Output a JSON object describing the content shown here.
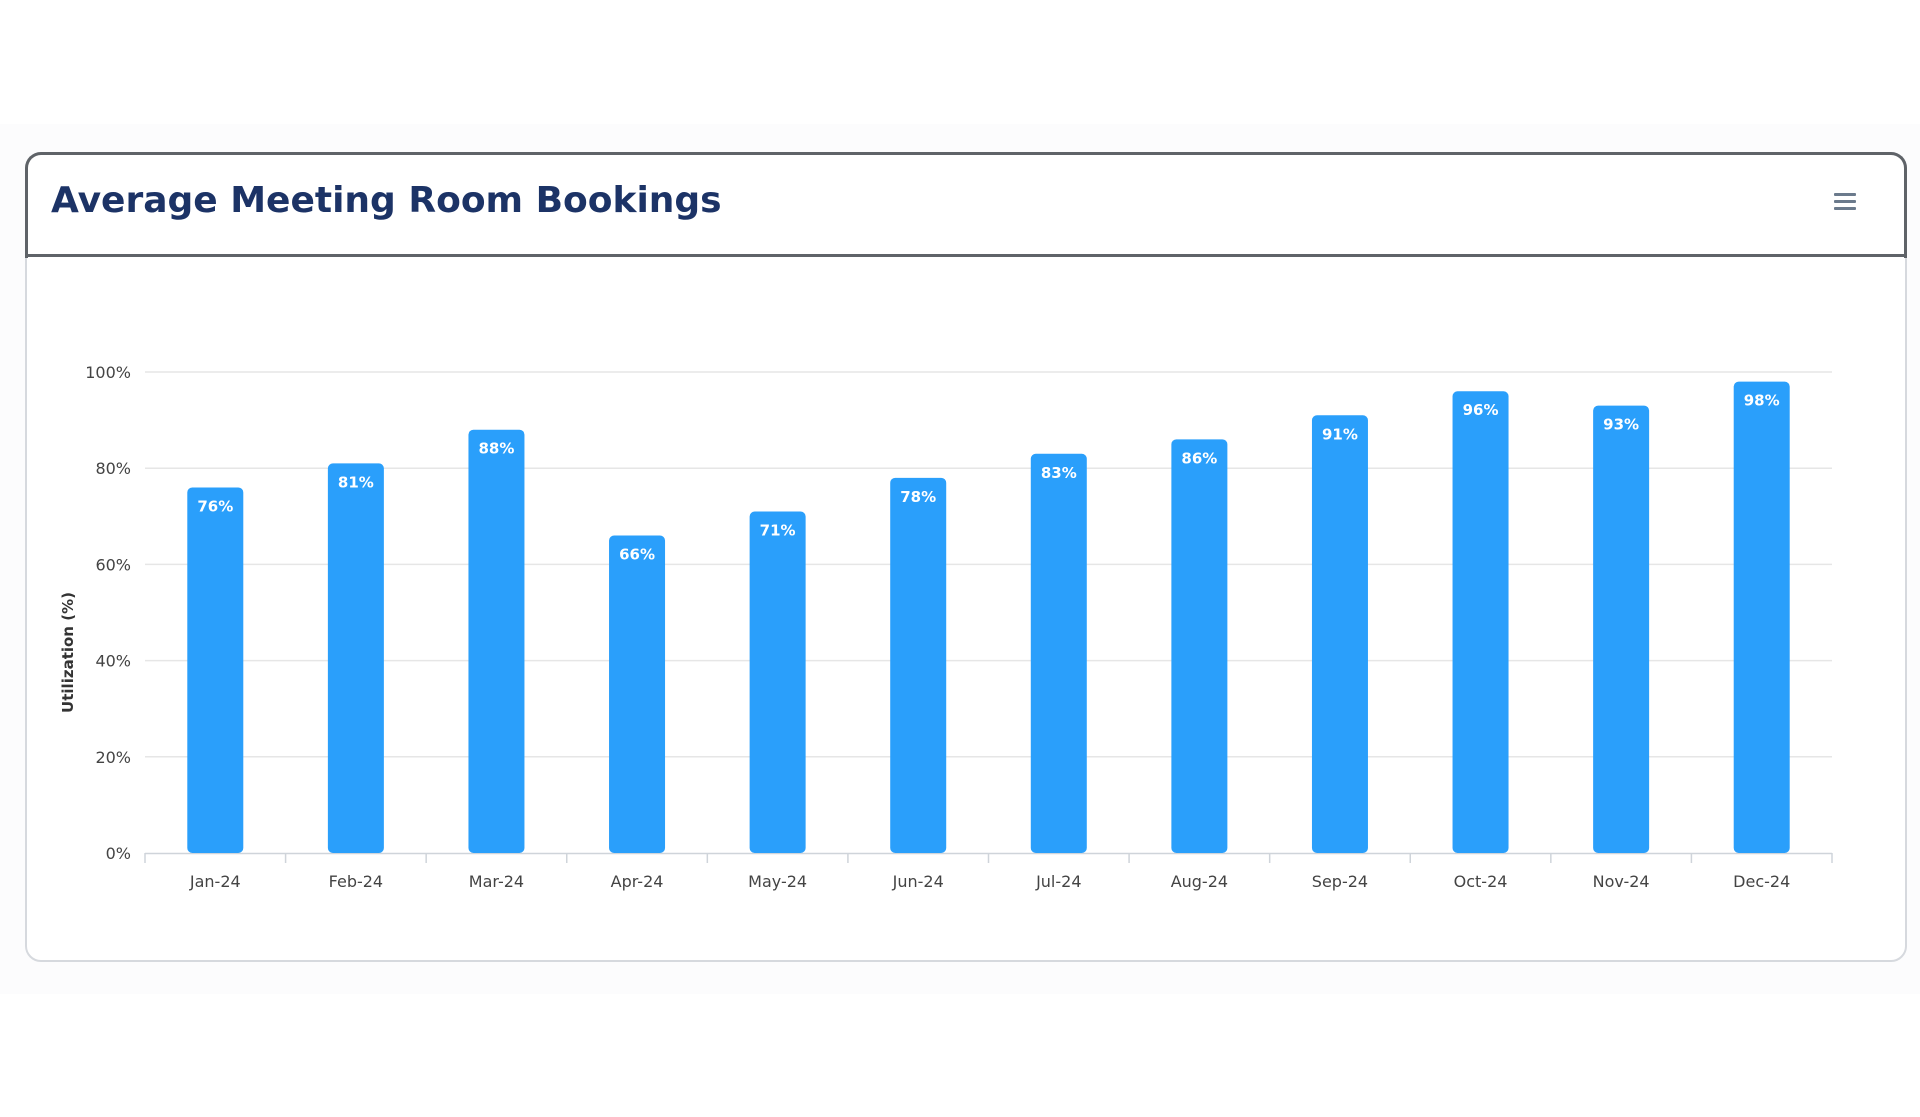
{
  "card": {
    "title": "Average Meeting Room Bookings"
  },
  "menu": {
    "icon": "hamburger-menu-icon"
  },
  "chart_data": {
    "type": "bar",
    "title": "Average Meeting Room Bookings",
    "categories": [
      "Jan-24",
      "Feb-24",
      "Mar-24",
      "Apr-24",
      "May-24",
      "Jun-24",
      "Jul-24",
      "Aug-24",
      "Sep-24",
      "Oct-24",
      "Nov-24",
      "Dec-24"
    ],
    "values": [
      76,
      81,
      88,
      66,
      71,
      78,
      83,
      86,
      91,
      96,
      93,
      98
    ],
    "value_labels": [
      "76%",
      "81%",
      "88%",
      "66%",
      "71%",
      "78%",
      "83%",
      "86%",
      "91%",
      "96%",
      "93%",
      "98%"
    ],
    "ylabel": "Utilization (%)",
    "xlabel": "",
    "ylim": [
      0,
      100
    ],
    "yticks": [
      0,
      20,
      40,
      60,
      80,
      100
    ],
    "ytick_labels": [
      "0%",
      "20%",
      "40%",
      "60%",
      "80%",
      "100%"
    ],
    "grid": true,
    "bar_color": "#2a9ffb",
    "grid_color": "#e6e6e6"
  }
}
